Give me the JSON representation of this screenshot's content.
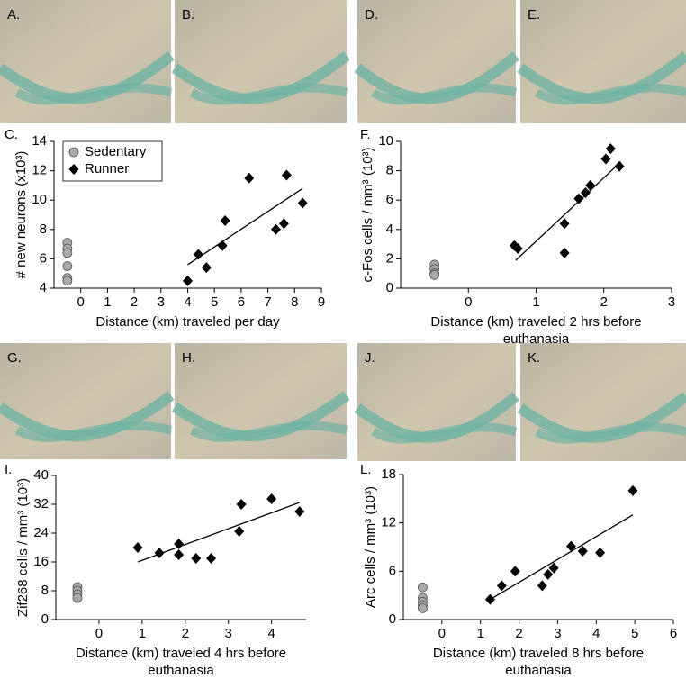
{
  "image_panels": [
    {
      "label": "A."
    },
    {
      "label": "B."
    },
    {
      "label": "D."
    },
    {
      "label": "E."
    },
    {
      "label": "G."
    },
    {
      "label": "H."
    },
    {
      "label": "J."
    },
    {
      "label": "K."
    }
  ],
  "chart_data": [
    {
      "type": "scatter",
      "panel_label": "C.",
      "ylabel": "# new neurons (x10³)",
      "xlabel": [
        "Distance (km) traveled per day"
      ],
      "xlim": [
        -1,
        9
      ],
      "xticks": [
        0,
        1,
        2,
        3,
        4,
        5,
        6,
        7,
        8,
        9
      ],
      "ylim": [
        4,
        14
      ],
      "yticks": [
        4,
        6,
        8,
        10,
        12,
        14
      ],
      "legend": "upper left",
      "series": [
        {
          "name": "Sedentary",
          "color": "#a8a8a8",
          "marker": "circle",
          "x": [
            -0.5,
            -0.5,
            -0.5,
            -0.5,
            -0.5,
            -0.5
          ],
          "values": [
            7.1,
            6.7,
            6.4,
            5.5,
            4.7,
            4.5
          ]
        },
        {
          "name": "Runner",
          "color": "#000000",
          "marker": "diamond",
          "x": [
            4,
            4.4,
            4.7,
            5.3,
            5.4,
            6.3,
            7.3,
            7.6,
            7.7,
            8.3
          ],
          "values": [
            4.5,
            6.3,
            5.4,
            6.9,
            8.6,
            11.5,
            8,
            8.4,
            11.7,
            9.8
          ]
        }
      ],
      "trendline": {
        "x": [
          4,
          8.3
        ],
        "y": [
          5.6,
          10.8
        ]
      }
    },
    {
      "type": "scatter",
      "panel_label": "F.",
      "ylabel": "c-Fos cells / mm³ (10³)",
      "xlabel": [
        "Distance (km) traveled 2 hrs before",
        "euthanasia"
      ],
      "xlim": [
        -1,
        3
      ],
      "xticks": [
        0,
        1,
        2,
        3
      ],
      "ylim": [
        0,
        10
      ],
      "yticks": [
        0,
        2,
        4,
        6,
        8,
        10
      ],
      "series": [
        {
          "color": "#a8a8a8",
          "marker": "circle",
          "x": [
            -0.5,
            -0.5,
            -0.5,
            -0.5
          ],
          "values": [
            1.6,
            1.3,
            1.0,
            0.9
          ]
        },
        {
          "color": "#000000",
          "marker": "diamond",
          "x": [
            0.68,
            0.73,
            1.42,
            1.42,
            1.63,
            1.73,
            1.8,
            2.03,
            2.1,
            2.23
          ],
          "values": [
            2.9,
            2.7,
            4.4,
            2.4,
            6.1,
            6.5,
            7.0,
            8.8,
            9.5,
            8.3
          ]
        }
      ],
      "trendline": {
        "x": [
          0.7,
          2.25
        ],
        "y": [
          1.9,
          8.6
        ]
      }
    },
    {
      "type": "scatter",
      "panel_label": "I.",
      "ylabel": "Zif268 cells / mm³ (10³)",
      "xlabel": [
        "Distance (km) traveled 4 hrs before",
        "euthanasia"
      ],
      "xlim": [
        -1,
        4.8
      ],
      "xticks": [
        0,
        1,
        2,
        3,
        4
      ],
      "ylim": [
        0,
        40
      ],
      "yticks": [
        0,
        8,
        16,
        24,
        32,
        40
      ],
      "series": [
        {
          "color": "#a8a8a8",
          "marker": "circle",
          "x": [
            -0.5,
            -0.5,
            -0.5,
            -0.5
          ],
          "values": [
            9,
            8,
            7,
            6
          ]
        },
        {
          "color": "#000000",
          "marker": "diamond",
          "x": [
            0.9,
            1.4,
            1.85,
            1.85,
            2.25,
            2.6,
            3.25,
            3.3,
            4,
            4.65
          ],
          "values": [
            20,
            18.5,
            18,
            21,
            17,
            17,
            24.5,
            32,
            33.5,
            30
          ]
        }
      ],
      "trendline": {
        "x": [
          0.9,
          4.65
        ],
        "y": [
          16,
          32.5
        ]
      }
    },
    {
      "type": "scatter",
      "panel_label": "L.",
      "ylabel": "Arc cells / mm³ (10³)",
      "xlabel": [
        "Distance (km) traveled 8 hrs before",
        "euthanasia"
      ],
      "xlim": [
        -1,
        6
      ],
      "xticks": [
        0,
        1,
        2,
        3,
        4,
        5,
        6
      ],
      "ylim": [
        0,
        18
      ],
      "yticks": [
        0,
        6,
        12,
        18
      ],
      "series": [
        {
          "color": "#a8a8a8",
          "marker": "circle",
          "x": [
            -0.5,
            -0.5,
            -0.5,
            -0.5,
            -0.5
          ],
          "values": [
            4,
            2.7,
            2.2,
            1.8,
            1.4
          ]
        },
        {
          "color": "#000000",
          "marker": "diamond",
          "x": [
            1.25,
            1.55,
            1.9,
            2.6,
            2.75,
            2.9,
            3.35,
            3.65,
            4.1,
            4.95
          ],
          "values": [
            2.5,
            4.2,
            6,
            4.2,
            5.6,
            6.4,
            9.1,
            8.5,
            8.3,
            16
          ]
        }
      ],
      "trendline": {
        "x": [
          1.25,
          4.95
        ],
        "y": [
          2.5,
          13
        ]
      }
    }
  ]
}
